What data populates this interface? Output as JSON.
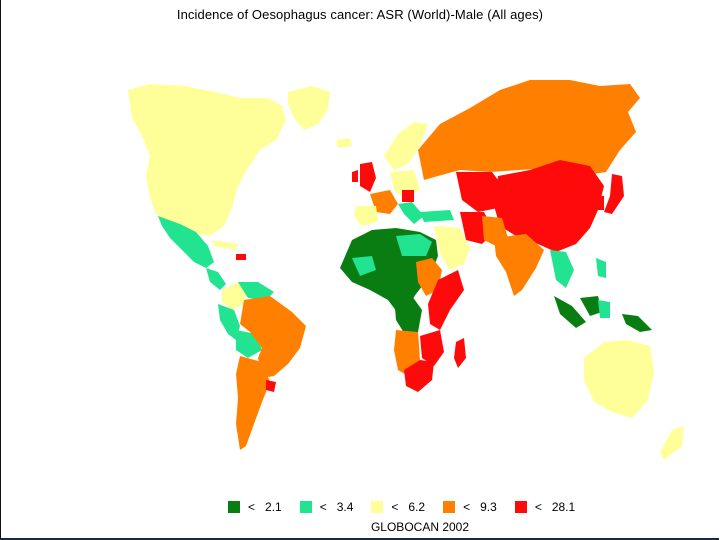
{
  "title": "Incidence of Oesophagus cancer: ASR (World)-Male (All ages)",
  "legend": [
    {
      "symbol": "<",
      "value": "2.1",
      "color": "#0a7d12"
    },
    {
      "symbol": "<",
      "value": "3.4",
      "color": "#22e38f"
    },
    {
      "symbol": "<",
      "value": "6.2",
      "color": "#ffff99"
    },
    {
      "symbol": "<",
      "value": "9.3",
      "color": "#ff8000"
    },
    {
      "symbol": "<",
      "value": "28.1",
      "color": "#ff0a0a"
    }
  ],
  "credit": "GLOBOCAN 2002",
  "colors": {
    "background": "#ffffff",
    "border": "#1b2a44"
  }
}
